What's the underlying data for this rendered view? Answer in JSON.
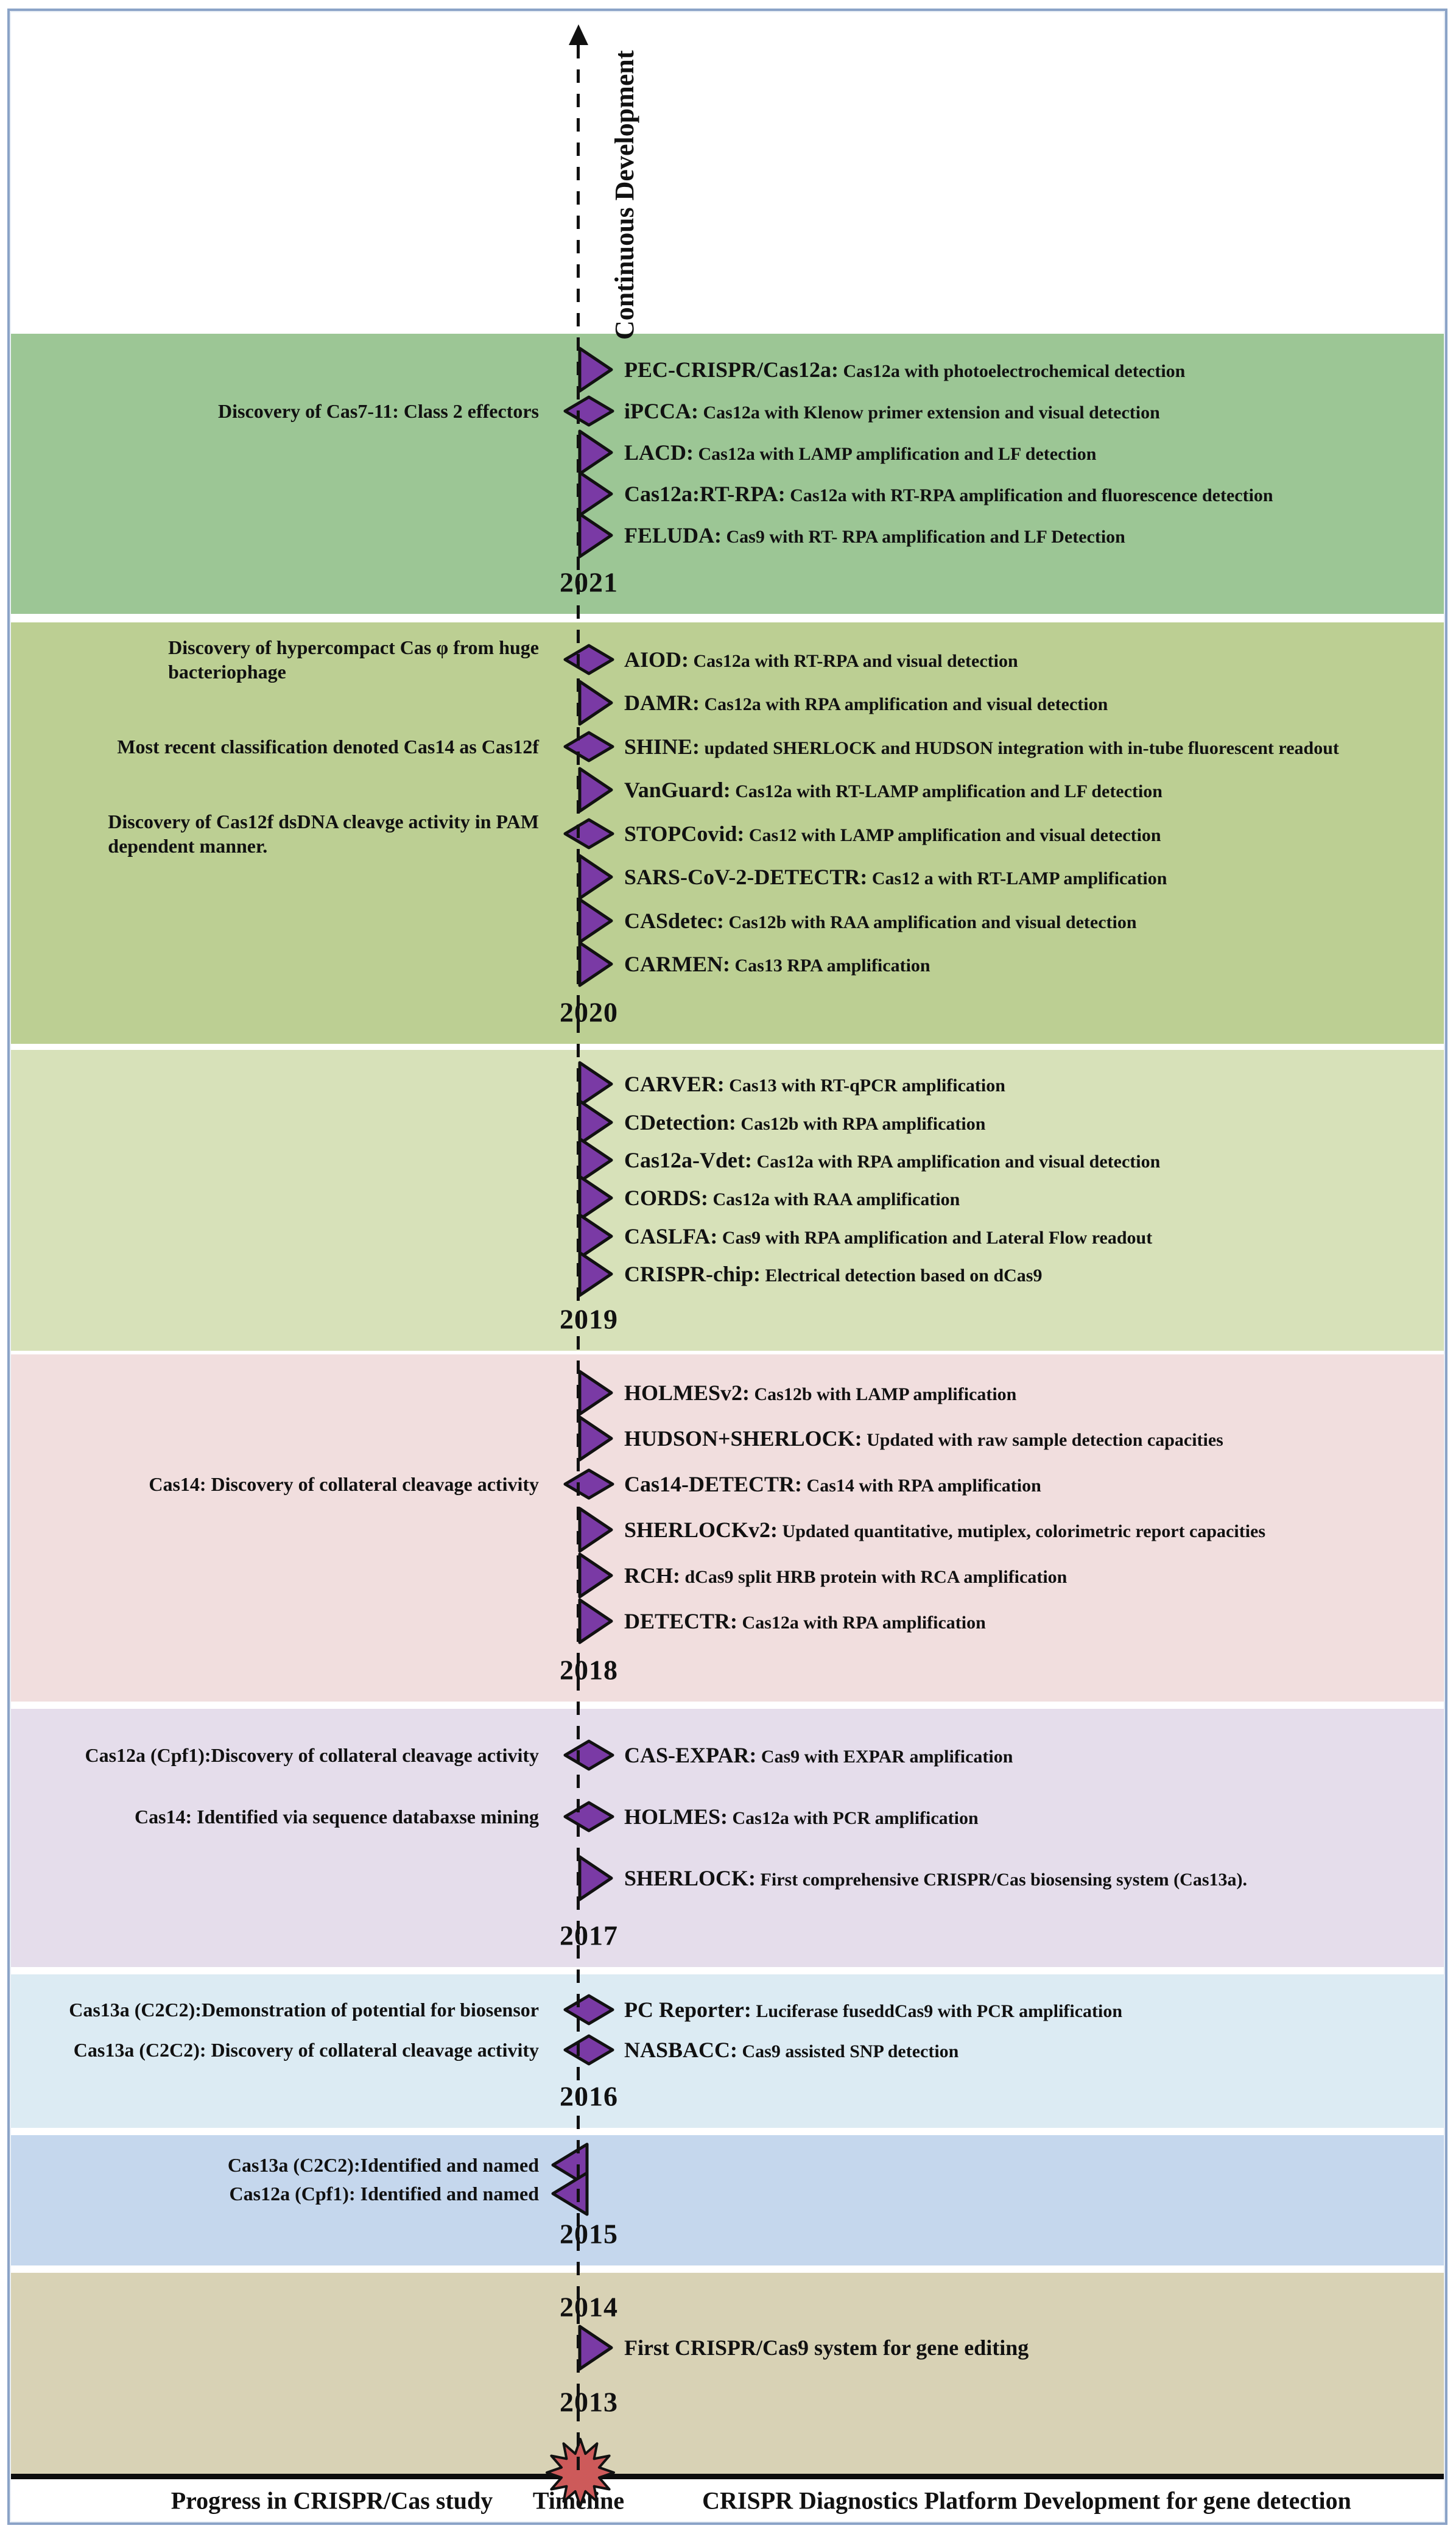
{
  "figure": {
    "axis_label": "Continuous Development",
    "legend": {
      "left": "Progress in CRISPR/Cas  study",
      "center": "Timeline",
      "right": "CRISPR Diagnostics Platform Development for gene detection"
    },
    "colors": {
      "marker": "#7a3aa5",
      "marker_stroke": "#111111",
      "starburst": "#cd5a5a",
      "timeline": "#111111",
      "frame": "#8ba3c7",
      "separator": "#0d0d0d"
    },
    "bands": [
      {
        "year": "2021",
        "color": "#9cc695",
        "events": [
          {
            "marker": "triangle",
            "name": "PEC-CRISPR/Cas12a:",
            "desc": "Cas12a  with photoelectrochemical detection"
          },
          {
            "marker": "diamond",
            "name": "iPCCA:",
            "desc": "Cas12a with Klenow primer extension and visual detection",
            "left_label": "Discovery of Cas7-11: Class 2 effectors"
          },
          {
            "marker": "triangle",
            "name": "LACD:",
            "desc": "Cas12a with LAMP amplification and LF detection"
          },
          {
            "marker": "triangle",
            "name": "Cas12a:RT-RPA:",
            "desc": "Cas12a with RT-RPA amplification and fluorescence detection"
          },
          {
            "marker": "triangle",
            "name": "FELUDA:",
            "desc": "Cas9 with RT- RPA amplification and LF Detection"
          }
        ]
      },
      {
        "year": "2020",
        "color": "#bccf93",
        "events": [
          {
            "marker": "diamond",
            "name": "AIOD:",
            "desc": "Cas12a with RT-RPA and visual detection",
            "left_label": "Discovery of hypercompact Cas φ from huge\nbacteriophage"
          },
          {
            "marker": "triangle",
            "name": "DAMR:",
            "desc": "Cas12a  with RPA amplification and visual detection"
          },
          {
            "marker": "diamond",
            "name": "SHINE:",
            "desc": "updated SHERLOCK and HUDSON integration with in-tube fluorescent readout",
            "left_label": "Most recent classification denoted Cas14 as Cas12f"
          },
          {
            "marker": "triangle",
            "name": "VanGuard:",
            "desc": "Cas12a  with RT-LAMP amplification and LF detection"
          },
          {
            "marker": "diamond",
            "name": "STOPCovid:",
            "desc": "Cas12 with LAMP amplification and visual detection",
            "left_label": "Discovery of Cas12f dsDNA cleavge activity in PAM\n dependent manner."
          },
          {
            "marker": "triangle",
            "name": "SARS-CoV-2-DETECTR:",
            "desc": "Cas12 a with RT-LAMP amplification"
          },
          {
            "marker": "triangle",
            "name": "CASdetec:",
            "desc": "Cas12b with RAA amplification and visual detection"
          },
          {
            "marker": "triangle",
            "name": "CARMEN:",
            "desc": "Cas13 RPA amplification"
          }
        ]
      },
      {
        "year": "2019",
        "color": "#d7e1b9",
        "events": [
          {
            "marker": "triangle",
            "name": "CARVER:",
            "desc": "Cas13 with RT-qPCR amplification"
          },
          {
            "marker": "triangle",
            "name": "CDetection:",
            "desc": "Cas12b with RPA amplification"
          },
          {
            "marker": "triangle",
            "name": "Cas12a-Vdet:",
            "desc": "Cas12a with RPA amplification and visual detection"
          },
          {
            "marker": "triangle",
            "name": "CORDS:",
            "desc": "Cas12a with RAA amplification"
          },
          {
            "marker": "triangle",
            "name": "CASLFA:",
            "desc": "Cas9 with RPA amplification and Lateral Flow readout"
          },
          {
            "marker": "triangle",
            "name": "CRISPR-chip:",
            "desc": "Electrical detection based on dCas9"
          }
        ]
      },
      {
        "year": "2018",
        "color": "#f1dede",
        "events": [
          {
            "marker": "triangle",
            "name": "HOLMESv2:",
            "desc": "Cas12b with LAMP amplification"
          },
          {
            "marker": "triangle",
            "name": "HUDSON+SHERLOCK:",
            "desc": "Updated with raw sample detection capacities"
          },
          {
            "marker": "diamond",
            "name": "Cas14-DETECTR:",
            "desc": "Cas14 with RPA amplification",
            "left_label": "Cas14: Discovery of collateral cleavage activity"
          },
          {
            "marker": "triangle",
            "name": "SHERLOCKv2:",
            "desc": "Updated quantitative, mutiplex, colorimetric report capacities"
          },
          {
            "marker": "triangle",
            "name": "RCH:",
            "desc": "dCas9 split HRB protein with RCA amplification"
          },
          {
            "marker": "triangle",
            "name": "DETECTR:",
            "desc": "Cas12a with RPA amplification"
          }
        ]
      },
      {
        "year": "2017",
        "color": "#e5ddeb",
        "events": [
          {
            "marker": "diamond",
            "name": "CAS-EXPAR:",
            "desc": "Cas9 with EXPAR amplification",
            "left_label": "Cas12a (Cpf1):Discovery of collateral cleavage activity"
          },
          {
            "marker": "diamond",
            "name": "HOLMES:",
            "desc": "Cas12a with PCR amplification",
            "left_label": "Cas14: Identified via sequence databaxse mining"
          },
          {
            "marker": "triangle",
            "name": "SHERLOCK:",
            "desc": "First comprehensive CRISPR/Cas biosensing system (Cas13a)."
          }
        ]
      },
      {
        "year": "2016",
        "color": "#dcebf3",
        "events": [
          {
            "marker": "diamond",
            "name": "PC Reporter:",
            "desc": "Luciferase fuseddCas9 with PCR amplification",
            "left_label": "Cas13a (C2C2):Demonstration of potential for biosensor"
          },
          {
            "marker": "diamond",
            "name": "NASBACC:",
            "desc": "Cas9 assisted SNP detection",
            "left_label": "Cas13a (C2C2): Discovery of collateral cleavage activity"
          }
        ]
      },
      {
        "year": "2015",
        "color": "#c5d7ed",
        "events": [
          {
            "marker": "triangle-left",
            "left_label": "Cas13a (C2C2):Identified and named"
          },
          {
            "marker": "triangle-left",
            "left_label": "Cas12a (Cpf1): Identified and named"
          }
        ]
      },
      {
        "year": "2013",
        "year_top": "2014",
        "color": "#d8d2b5",
        "events": [
          {
            "marker": "triangle",
            "name": "First CRISPR/Cas9 system for gene editing",
            "desc": ""
          }
        ]
      }
    ]
  }
}
